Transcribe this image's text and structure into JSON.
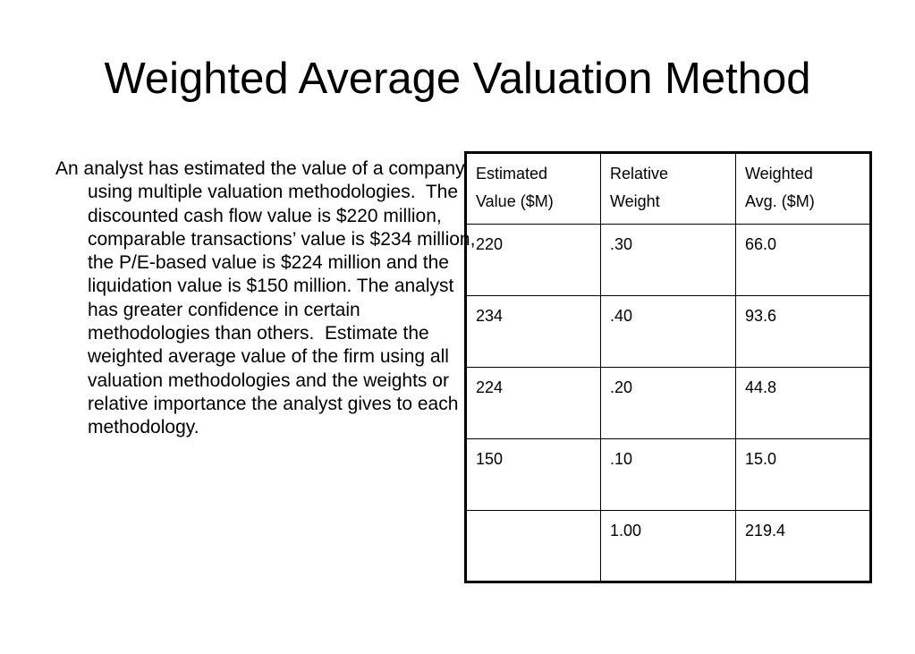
{
  "title": "Weighted Average Valuation Method",
  "body_text": "An analyst has estimated the value of a company using multiple valuation methodologies.  The discounted cash flow value is $220 million, comparable transactions’ value is $234 million, the P/E-based value is $224 million and the liquidation value is $150 million. The analyst has greater confidence in certain methodologies than others.  Estimate the weighted average value of the firm using all valuation methodologies and the weights or relative importance the analyst gives to each methodology.",
  "table": {
    "headers": [
      {
        "line1": "Estimated",
        "line2": "Value ($M)"
      },
      {
        "line1": "Relative",
        "line2": "Weight"
      },
      {
        "line1": "Weighted",
        "line2": "Avg. ($M)"
      }
    ],
    "rows": [
      [
        "220",
        ".30",
        "66.0"
      ],
      [
        "234",
        ".40",
        "93.6"
      ],
      [
        "224",
        ".20",
        "44.8"
      ],
      [
        "150",
        ".10",
        "15.0"
      ],
      [
        "",
        "1.00",
        "219.4"
      ]
    ]
  }
}
